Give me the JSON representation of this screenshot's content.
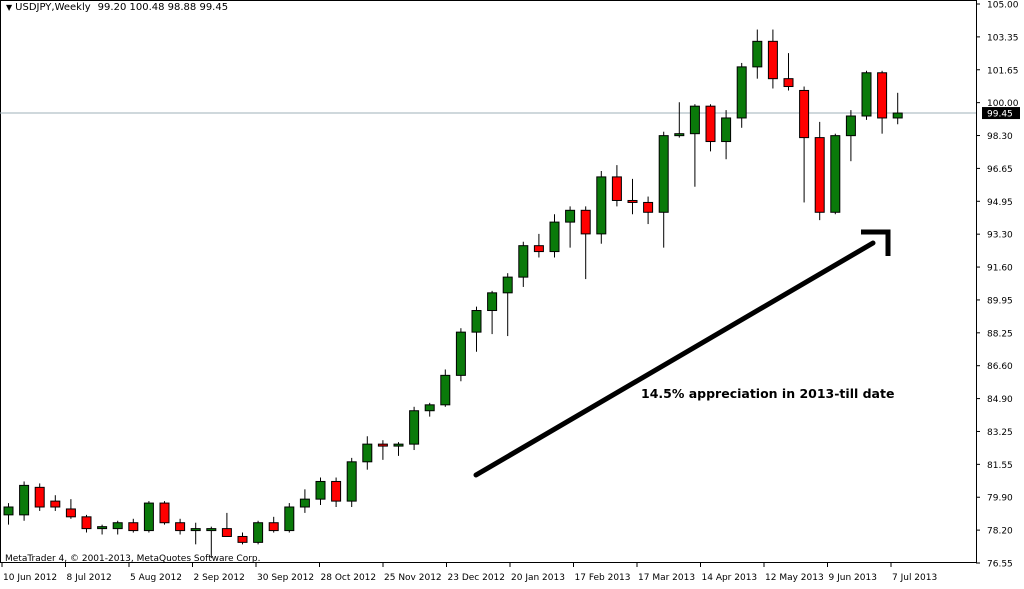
{
  "header": {
    "symbol": "USDJPY,Weekly",
    "ohlc": "99.20 100.48 98.88 99.45"
  },
  "footer": {
    "copyright": "MetaTrader 4, © 2001-2013, MetaQuotes Software Corp."
  },
  "annotation": {
    "text": "14.5% appreciation in 2013-till date"
  },
  "colors": {
    "bull": "#0a7a0a",
    "bear": "#ff0000",
    "outline": "#000000",
    "price_line": "#9fb0b8"
  },
  "chart_data": {
    "type": "candlestick",
    "title": "USDJPY,Weekly",
    "current_price": 99.45,
    "current_price_label": "99.45",
    "ylim": [
      76.55,
      105.0
    ],
    "y_ticks": [
      "105.00",
      "103.35",
      "101.65",
      "100.00",
      "98.30",
      "96.65",
      "94.95",
      "93.30",
      "91.60",
      "89.95",
      "88.25",
      "86.60",
      "84.90",
      "83.25",
      "81.55",
      "79.90",
      "78.20",
      "76.55"
    ],
    "x_labels": [
      "10 Jun 2012",
      "8 Jul 2012",
      "5 Aug 2012",
      "2 Sep 2012",
      "30 Sep 2012",
      "28 Oct 2012",
      "25 Nov 2012",
      "23 Dec 2012",
      "20 Jan 2013",
      "17 Feb 2013",
      "17 Mar 2013",
      "14 Apr 2013",
      "12 May 2013",
      "9 Jun 2013",
      "7 Jul 2013"
    ],
    "candles": [
      {
        "o": 79.0,
        "h": 79.6,
        "l": 78.5,
        "c": 79.4
      },
      {
        "o": 79.0,
        "h": 80.7,
        "l": 78.7,
        "c": 80.5
      },
      {
        "o": 80.4,
        "h": 80.6,
        "l": 79.2,
        "c": 79.4
      },
      {
        "o": 79.7,
        "h": 80.0,
        "l": 79.2,
        "c": 79.4
      },
      {
        "o": 79.3,
        "h": 79.8,
        "l": 78.8,
        "c": 78.9
      },
      {
        "o": 78.9,
        "h": 79.0,
        "l": 78.1,
        "c": 78.3
      },
      {
        "o": 78.3,
        "h": 78.5,
        "l": 78.0,
        "c": 78.4
      },
      {
        "o": 78.3,
        "h": 78.7,
        "l": 78.0,
        "c": 78.6
      },
      {
        "o": 78.6,
        "h": 78.8,
        "l": 78.1,
        "c": 78.2
      },
      {
        "o": 78.2,
        "h": 79.7,
        "l": 78.1,
        "c": 79.6
      },
      {
        "o": 79.6,
        "h": 79.7,
        "l": 78.5,
        "c": 78.6
      },
      {
        "o": 78.6,
        "h": 78.8,
        "l": 78.0,
        "c": 78.2
      },
      {
        "o": 78.2,
        "h": 78.6,
        "l": 77.5,
        "c": 78.3
      },
      {
        "o": 78.2,
        "h": 78.4,
        "l": 76.8,
        "c": 78.3
      },
      {
        "o": 78.3,
        "h": 79.1,
        "l": 77.9,
        "c": 77.9
      },
      {
        "o": 77.9,
        "h": 78.1,
        "l": 77.5,
        "c": 77.6
      },
      {
        "o": 77.6,
        "h": 78.7,
        "l": 77.5,
        "c": 78.6
      },
      {
        "o": 78.6,
        "h": 78.9,
        "l": 78.1,
        "c": 78.2
      },
      {
        "o": 78.2,
        "h": 79.6,
        "l": 78.1,
        "c": 79.4
      },
      {
        "o": 79.4,
        "h": 80.3,
        "l": 79.1,
        "c": 79.8
      },
      {
        "o": 79.8,
        "h": 80.9,
        "l": 79.5,
        "c": 80.7
      },
      {
        "o": 80.7,
        "h": 80.9,
        "l": 79.4,
        "c": 79.7
      },
      {
        "o": 79.7,
        "h": 81.9,
        "l": 79.4,
        "c": 81.7
      },
      {
        "o": 81.7,
        "h": 83.0,
        "l": 81.3,
        "c": 82.6
      },
      {
        "o": 82.6,
        "h": 82.8,
        "l": 81.8,
        "c": 82.5
      },
      {
        "o": 82.5,
        "h": 82.7,
        "l": 82.0,
        "c": 82.6
      },
      {
        "o": 82.6,
        "h": 84.5,
        "l": 82.3,
        "c": 84.3
      },
      {
        "o": 84.3,
        "h": 84.7,
        "l": 84.0,
        "c": 84.6
      },
      {
        "o": 84.6,
        "h": 86.4,
        "l": 84.5,
        "c": 86.1
      },
      {
        "o": 86.1,
        "h": 88.5,
        "l": 85.8,
        "c": 88.3
      },
      {
        "o": 88.3,
        "h": 89.6,
        "l": 87.3,
        "c": 89.4
      },
      {
        "o": 89.4,
        "h": 90.4,
        "l": 88.2,
        "c": 90.3
      },
      {
        "o": 90.3,
        "h": 91.3,
        "l": 88.1,
        "c": 91.1
      },
      {
        "o": 91.1,
        "h": 92.9,
        "l": 90.6,
        "c": 92.7
      },
      {
        "o": 92.7,
        "h": 93.3,
        "l": 92.1,
        "c": 92.4
      },
      {
        "o": 92.4,
        "h": 94.3,
        "l": 92.1,
        "c": 93.9
      },
      {
        "o": 93.9,
        "h": 94.7,
        "l": 92.6,
        "c": 94.5
      },
      {
        "o": 94.5,
        "h": 94.7,
        "l": 91.0,
        "c": 93.3
      },
      {
        "o": 93.3,
        "h": 96.5,
        "l": 92.8,
        "c": 96.2
      },
      {
        "o": 96.2,
        "h": 96.8,
        "l": 94.7,
        "c": 95.0
      },
      {
        "o": 95.0,
        "h": 96.1,
        "l": 94.3,
        "c": 94.9
      },
      {
        "o": 94.9,
        "h": 95.2,
        "l": 93.8,
        "c": 94.4
      },
      {
        "o": 94.4,
        "h": 98.5,
        "l": 92.6,
        "c": 98.3
      },
      {
        "o": 98.3,
        "h": 100.0,
        "l": 98.2,
        "c": 98.4
      },
      {
        "o": 98.4,
        "h": 99.9,
        "l": 95.7,
        "c": 99.8
      },
      {
        "o": 99.8,
        "h": 99.9,
        "l": 97.5,
        "c": 98.0
      },
      {
        "o": 98.0,
        "h": 99.6,
        "l": 97.1,
        "c": 99.2
      },
      {
        "o": 99.2,
        "h": 102.0,
        "l": 98.7,
        "c": 101.8
      },
      {
        "o": 101.8,
        "h": 103.7,
        "l": 101.2,
        "c": 103.1
      },
      {
        "o": 103.1,
        "h": 103.7,
        "l": 100.7,
        "c": 101.2
      },
      {
        "o": 101.2,
        "h": 102.5,
        "l": 100.6,
        "c": 100.8
      },
      {
        "o": 100.6,
        "h": 100.8,
        "l": 94.9,
        "c": 98.2
      },
      {
        "o": 98.2,
        "h": 99.0,
        "l": 94.0,
        "c": 94.4
      },
      {
        "o": 94.4,
        "h": 98.4,
        "l": 94.3,
        "c": 98.3
      },
      {
        "o": 98.3,
        "h": 99.6,
        "l": 97.0,
        "c": 99.3
      },
      {
        "o": 99.3,
        "h": 101.6,
        "l": 99.1,
        "c": 101.5
      },
      {
        "o": 101.5,
        "h": 101.6,
        "l": 98.4,
        "c": 99.2
      },
      {
        "o": 99.2,
        "h": 100.48,
        "l": 98.88,
        "c": 99.45
      }
    ]
  }
}
